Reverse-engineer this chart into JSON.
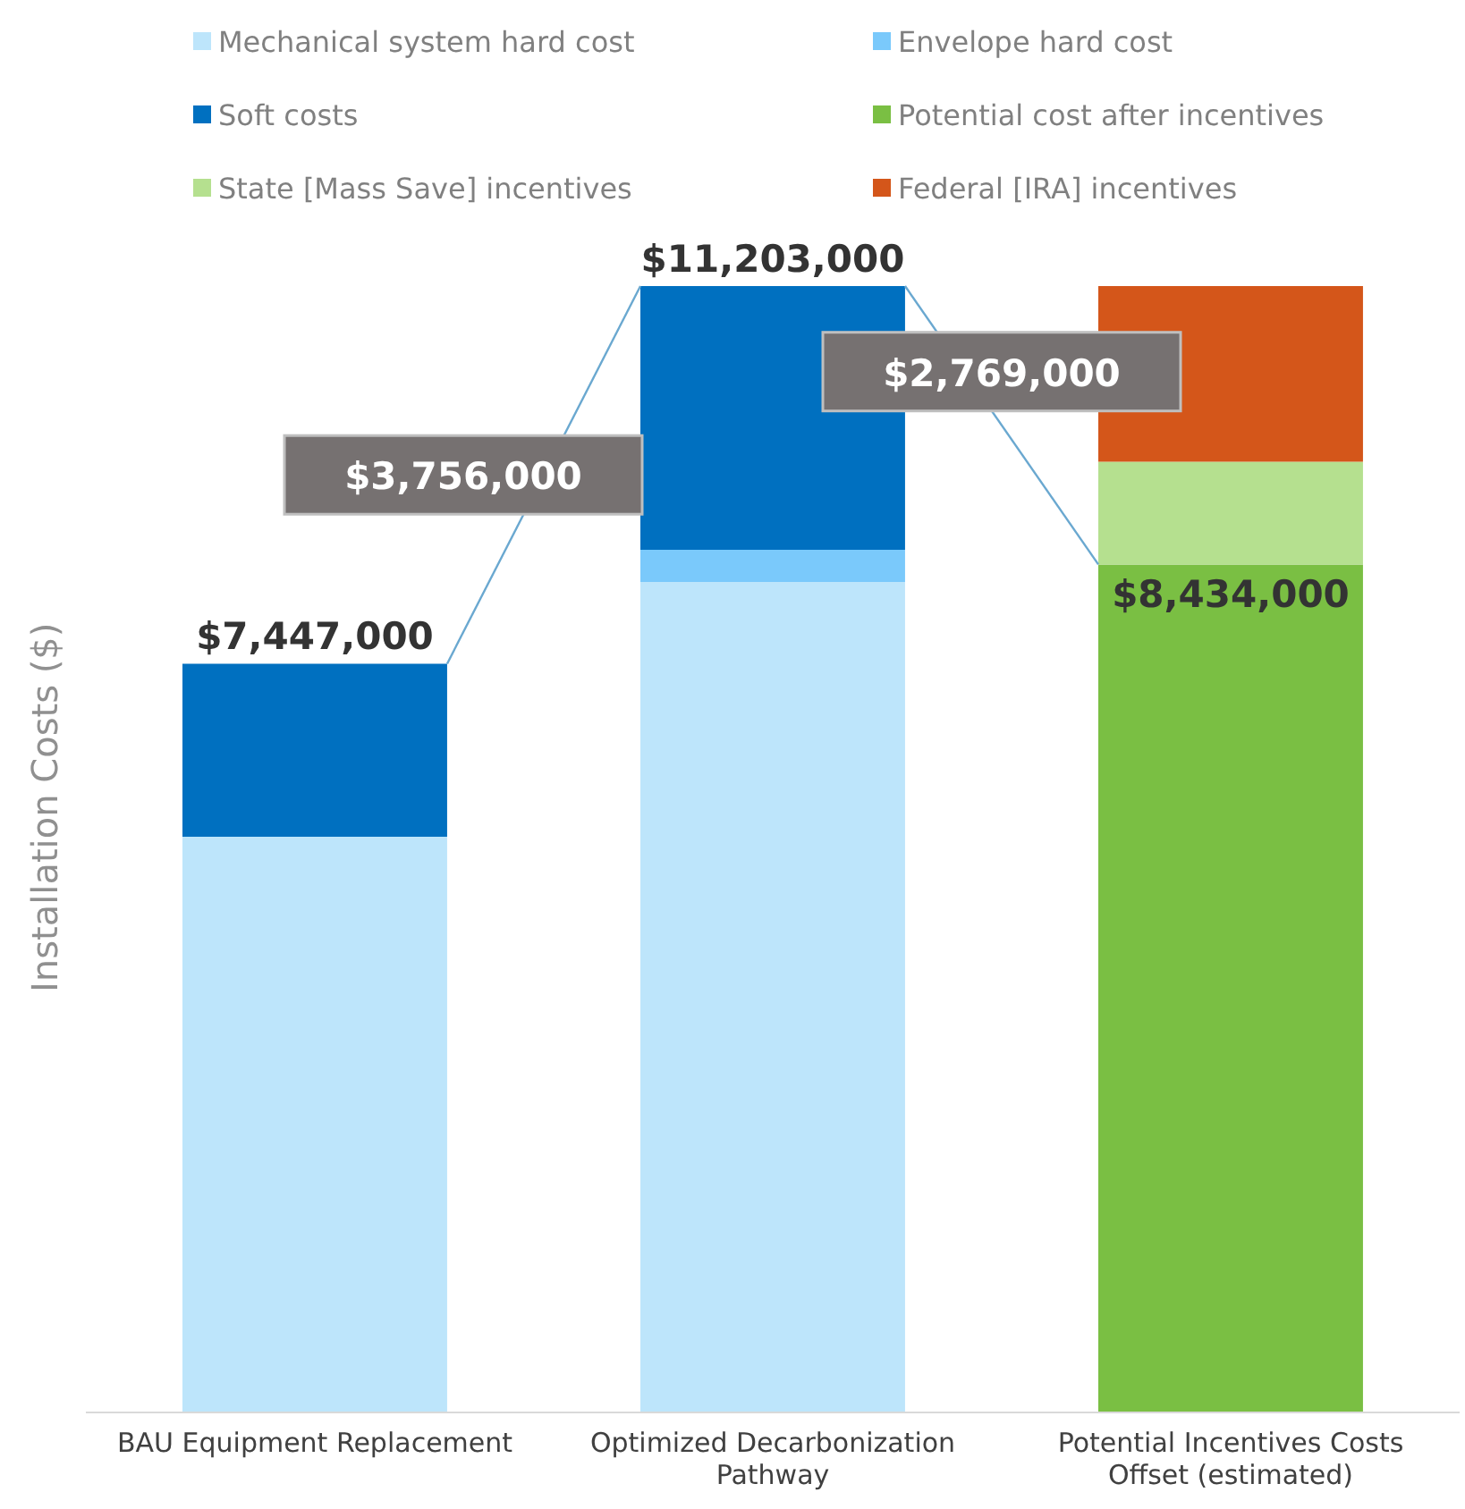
{
  "chart_data": {
    "type": "bar",
    "stacked": true,
    "ylabel": "Installation Costs ($)",
    "legend": "top",
    "categories": [
      "BAU Equipment Replacement",
      "Optimized Decarbonization Pathway",
      "Potential Incentives Costs Offset (estimated)"
    ],
    "series": [
      {
        "name": "Mechanical system hard cost",
        "color": "#bde5fb",
        "values": [
          5726000,
          8260000,
          null
        ]
      },
      {
        "name": "Envelope hard cost",
        "color": "#7ac9fb",
        "values": [
          null,
          321000,
          null
        ]
      },
      {
        "name": "Soft costs",
        "color": "#0070c0",
        "values": [
          1721000,
          2622000,
          null
        ]
      },
      {
        "name": "Potential cost after incentives",
        "color": "#7abf43",
        "values": [
          null,
          null,
          8434000
        ],
        "value_labels": [
          null,
          null,
          "$8,434,000"
        ]
      },
      {
        "name": "State [Mass Save] incentives",
        "color": "#b5e08f",
        "values": [
          null,
          null,
          1021000
        ]
      },
      {
        "name": "Federal [IRA] incentives",
        "color": "#d4561a",
        "values": [
          null,
          null,
          1748000
        ]
      }
    ],
    "totals": [
      "$7,447,000",
      "$11,203,000",
      null
    ],
    "annotations": [
      "$3,756,000",
      "$2,769,000"
    ]
  }
}
